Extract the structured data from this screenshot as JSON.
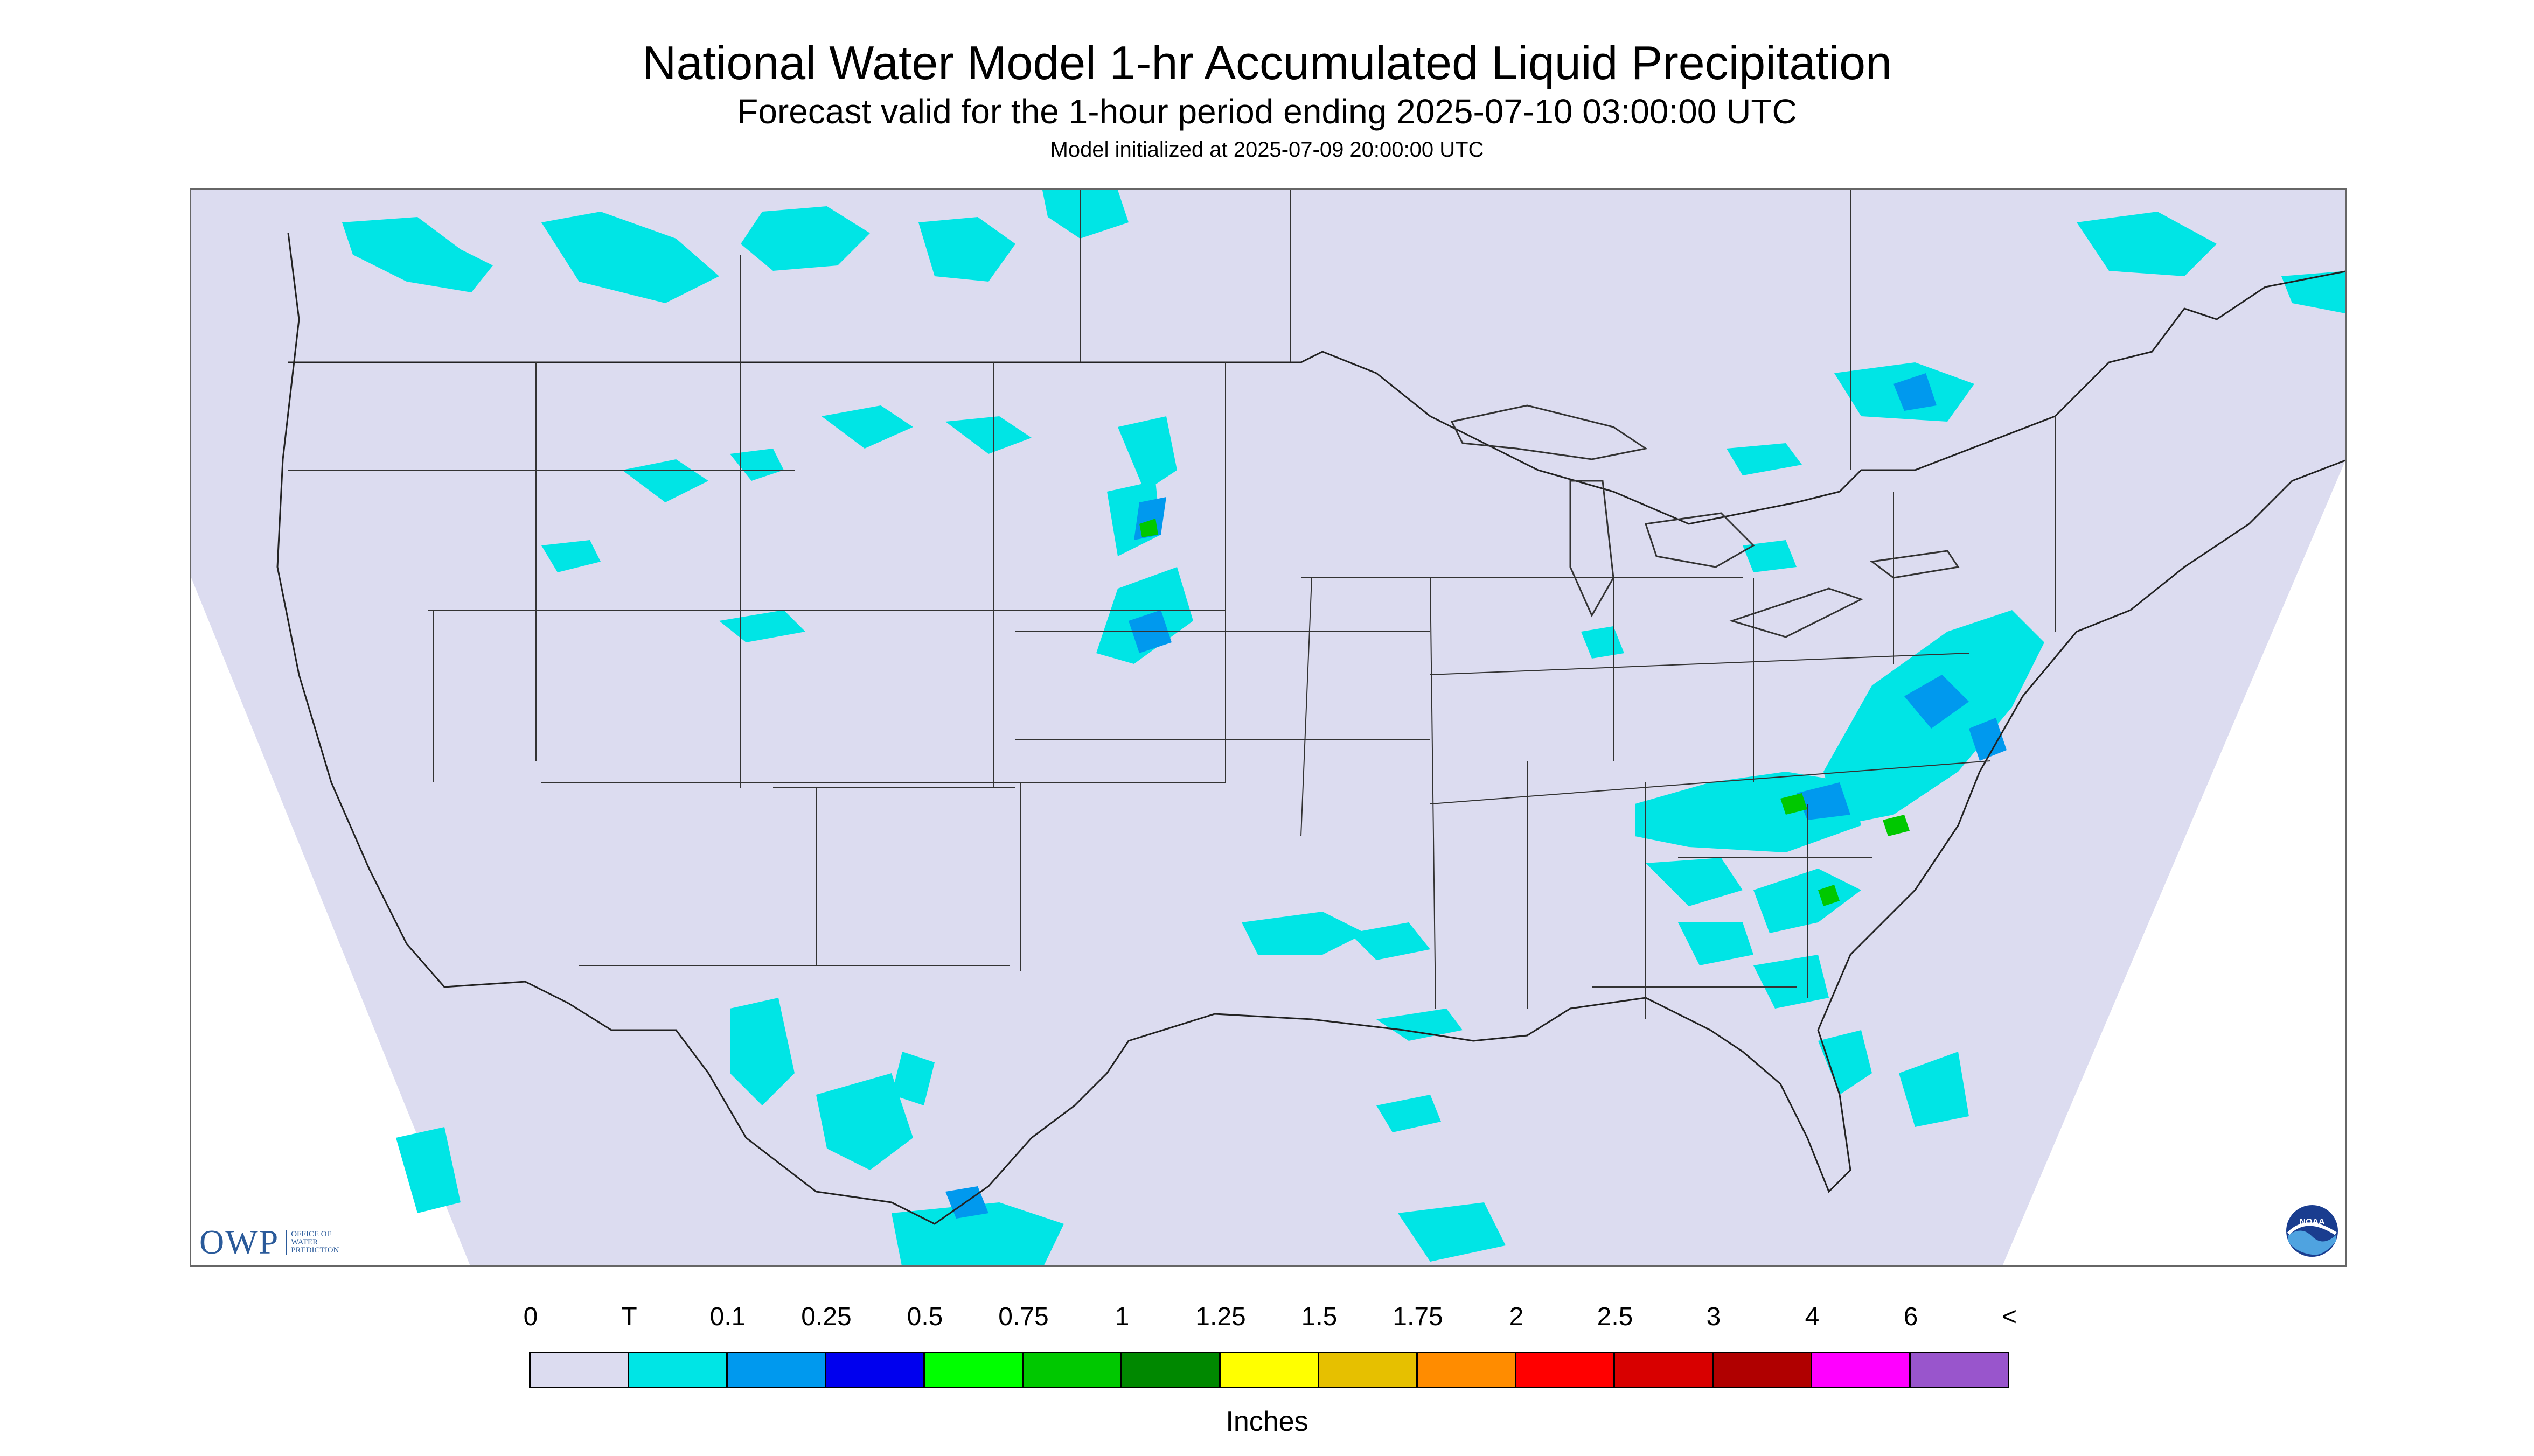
{
  "title": "National Water Model 1-hr Accumulated Liquid Precipitation",
  "subtitle": "Forecast valid for the 1-hour period ending 2025-07-10 03:00:00 UTC",
  "init_line": "Model initialized at 2025-07-09 20:00:00 UTC",
  "logos": {
    "owp_mark": "OWP",
    "owp_sub": [
      "OFFICE OF",
      "WATER",
      "PREDICTION"
    ],
    "noaa_text": "NOAA"
  },
  "legend": {
    "labels": [
      "0",
      "T",
      "0.1",
      "0.25",
      "0.5",
      "0.75",
      "1",
      "1.25",
      "1.5",
      "1.75",
      "2",
      "2.5",
      "3",
      "4",
      "6",
      "<"
    ],
    "colors": [
      "#dcdcf0",
      "#00e5e5",
      "#0099ee",
      "#0000ee",
      "#00ff00",
      "#00c800",
      "#008800",
      "#ffff00",
      "#e6c000",
      "#ff8c00",
      "#ff0000",
      "#d80000",
      "#b00000",
      "#ff00ff",
      "#9955cc"
    ],
    "units": "Inches"
  },
  "map": {
    "background_color": "#dcdcf0",
    "outside_color": "#ffffff",
    "boundary_color": "#222222"
  }
}
